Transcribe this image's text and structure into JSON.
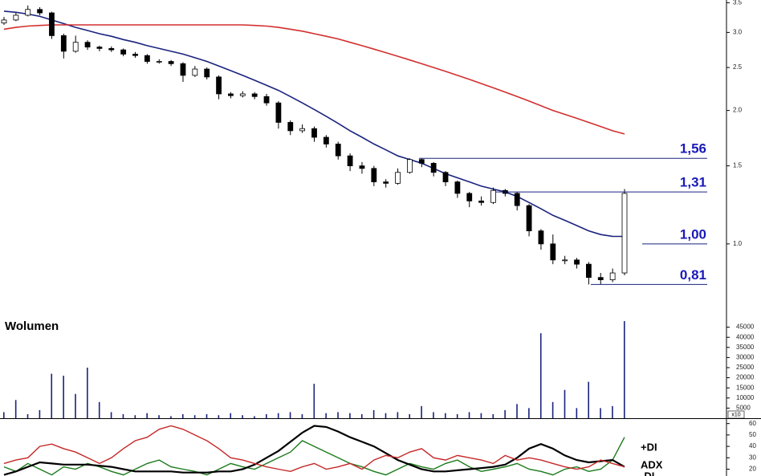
{
  "chart_data": [
    {
      "type": "candlestick",
      "log_scale": true,
      "ylim": [
        0.71,
        3.55
      ],
      "yticks": [
        3.5,
        {
          "value": 3,
          "label": "3.0"
        },
        2.5,
        {
          "value": 2,
          "label": "2.0"
        },
        1.5,
        {
          "value": 1,
          "label": "1.0"
        }
      ],
      "open": [
        3.15,
        3.2,
        3.28,
        3.38,
        3.32,
        2.95,
        2.72,
        2.85,
        2.78,
        2.76,
        2.74,
        2.68,
        2.66,
        2.58,
        2.58,
        2.55,
        2.4,
        2.48,
        2.38,
        2.18,
        2.16,
        2.18,
        2.15,
        2.08,
        1.88,
        1.8,
        1.82,
        1.74,
        1.68,
        1.58,
        1.5,
        1.48,
        1.38,
        1.37,
        1.45,
        1.55,
        1.52,
        1.45,
        1.38,
        1.3,
        1.25,
        1.24,
        1.32,
        1.3,
        1.22,
        1.07,
        1.0,
        0.92,
        0.92,
        0.9,
        0.84,
        0.83,
        0.86
      ],
      "high": [
        3.25,
        3.32,
        3.45,
        3.42,
        3.34,
        2.98,
        2.95,
        2.88,
        2.8,
        2.79,
        2.76,
        2.71,
        2.68,
        2.61,
        2.6,
        2.57,
        2.52,
        2.5,
        2.4,
        2.2,
        2.21,
        2.2,
        2.18,
        2.1,
        1.9,
        1.86,
        1.84,
        1.76,
        1.7,
        1.6,
        1.53,
        1.5,
        1.4,
        1.48,
        1.56,
        1.56,
        1.53,
        1.46,
        1.39,
        1.31,
        1.28,
        1.34,
        1.33,
        1.31,
        1.23,
        1.08,
        1.05,
        0.94,
        0.93,
        0.91,
        0.86,
        0.88,
        1.33
      ],
      "low": [
        3.12,
        3.18,
        3.26,
        3.28,
        2.9,
        2.62,
        2.7,
        2.74,
        2.72,
        2.71,
        2.65,
        2.63,
        2.55,
        2.55,
        2.52,
        2.32,
        2.38,
        2.35,
        2.12,
        2.13,
        2.14,
        2.12,
        2.05,
        1.82,
        1.76,
        1.78,
        1.7,
        1.65,
        1.55,
        1.46,
        1.44,
        1.35,
        1.34,
        1.36,
        1.44,
        1.49,
        1.42,
        1.35,
        1.27,
        1.21,
        1.22,
        1.23,
        1.28,
        1.19,
        1.04,
        0.97,
        0.9,
        0.9,
        0.88,
        0.81,
        0.81,
        0.82,
        0.85
      ],
      "close": [
        3.2,
        3.28,
        3.38,
        3.32,
        2.95,
        2.72,
        2.85,
        2.78,
        2.76,
        2.74,
        2.68,
        2.66,
        2.58,
        2.58,
        2.55,
        2.4,
        2.48,
        2.38,
        2.18,
        2.16,
        2.18,
        2.15,
        2.08,
        1.88,
        1.8,
        1.82,
        1.74,
        1.68,
        1.58,
        1.5,
        1.48,
        1.38,
        1.37,
        1.45,
        1.55,
        1.52,
        1.45,
        1.38,
        1.3,
        1.25,
        1.24,
        1.32,
        1.3,
        1.22,
        1.07,
        1.0,
        0.92,
        0.92,
        0.9,
        0.84,
        0.83,
        0.86,
        1.3
      ],
      "overlays": [
        {
          "color": "#1a237e",
          "values": [
            3.35,
            3.33,
            3.3,
            3.26,
            3.2,
            3.14,
            3.08,
            3.03,
            2.98,
            2.94,
            2.89,
            2.85,
            2.8,
            2.76,
            2.72,
            2.68,
            2.63,
            2.58,
            2.52,
            2.46,
            2.4,
            2.34,
            2.28,
            2.22,
            2.15,
            2.08,
            2.01,
            1.94,
            1.87,
            1.8,
            1.74,
            1.68,
            1.63,
            1.58,
            1.55,
            1.52,
            1.48,
            1.44,
            1.41,
            1.38,
            1.35,
            1.33,
            1.31,
            1.28,
            1.24,
            1.2,
            1.16,
            1.13,
            1.1,
            1.07,
            1.05,
            1.04,
            1.04
          ]
        },
        {
          "color": "#d32f2f",
          "values": [
            3.05,
            3.08,
            3.1,
            3.11,
            3.12,
            3.12,
            3.12,
            3.12,
            3.12,
            3.12,
            3.12,
            3.12,
            3.12,
            3.12,
            3.12,
            3.12,
            3.12,
            3.12,
            3.12,
            3.12,
            3.12,
            3.11,
            3.1,
            3.08,
            3.05,
            3.02,
            2.98,
            2.94,
            2.9,
            2.85,
            2.8,
            2.75,
            2.7,
            2.65,
            2.6,
            2.55,
            2.5,
            2.45,
            2.4,
            2.35,
            2.3,
            2.25,
            2.2,
            2.15,
            2.1,
            2.05,
            2.0,
            1.96,
            1.92,
            1.88,
            1.84,
            1.8,
            1.77
          ]
        }
      ],
      "level_color": "#1a237e",
      "levels": [
        {
          "value": 1.56,
          "label": "1,56"
        },
        {
          "value": 1.31,
          "label": "1,31"
        },
        {
          "value": 1.0,
          "label": "1,00"
        },
        {
          "value": 0.81,
          "label": "0,81"
        }
      ]
    },
    {
      "type": "bar",
      "title": "Wolumen",
      "color": "#1a237e",
      "axis_note": "x10",
      "ylim": [
        0,
        50000
      ],
      "yticks": [
        5000,
        10000,
        15000,
        20000,
        25000,
        30000,
        35000,
        40000,
        45000
      ],
      "values": [
        3000,
        9000,
        2000,
        4000,
        22000,
        21000,
        12000,
        25000,
        8000,
        3000,
        2000,
        1500,
        2500,
        1500,
        1000,
        2000,
        1500,
        2000,
        1500,
        2500,
        1500,
        1000,
        2000,
        2500,
        3000,
        2000,
        17000,
        2500,
        3000,
        2500,
        2000,
        4000,
        2500,
        3000,
        2000,
        6000,
        3000,
        2500,
        2000,
        3000,
        2500,
        2000,
        4000,
        7000,
        5000,
        42000,
        8000,
        14000,
        5000,
        18000,
        5000,
        6000,
        48000
      ]
    },
    {
      "type": "line",
      "ylim": [
        14,
        64
      ],
      "yticks": [
        20,
        30,
        40,
        50,
        60
      ],
      "series": [
        {
          "name": "+DI",
          "color": "#1b7a1b",
          "values": [
            22,
            18,
            25,
            20,
            15,
            22,
            20,
            25,
            22,
            18,
            15,
            20,
            25,
            28,
            22,
            20,
            18,
            15,
            20,
            25,
            22,
            20,
            25,
            30,
            35,
            45,
            40,
            35,
            30,
            25,
            22,
            18,
            15,
            20,
            25,
            22,
            20,
            25,
            28,
            22,
            18,
            20,
            22,
            25,
            20,
            18,
            15,
            20,
            22,
            18,
            20,
            28,
            48
          ]
        },
        {
          "name": "ADX",
          "color": "#000000",
          "values": [
            15,
            18,
            22,
            26,
            25,
            24,
            24,
            24,
            23,
            22,
            20,
            18,
            18,
            18,
            18,
            17,
            17,
            17,
            18,
            18,
            20,
            24,
            30,
            36,
            44,
            52,
            58,
            57,
            53,
            48,
            44,
            40,
            34,
            28,
            24,
            20,
            18,
            18,
            19,
            20,
            21,
            22,
            24,
            30,
            38,
            42,
            38,
            32,
            28,
            26,
            27,
            28,
            22
          ]
        },
        {
          "name": "-DI",
          "color": "#c62828",
          "values": [
            25,
            28,
            30,
            40,
            42,
            38,
            35,
            30,
            25,
            30,
            38,
            45,
            48,
            55,
            58,
            55,
            50,
            45,
            38,
            30,
            28,
            25,
            22,
            20,
            18,
            22,
            25,
            20,
            22,
            25,
            20,
            28,
            32,
            30,
            35,
            38,
            30,
            28,
            32,
            30,
            28,
            25,
            32,
            28,
            30,
            28,
            25,
            22,
            20,
            22,
            28,
            25,
            22
          ]
        }
      ]
    }
  ]
}
